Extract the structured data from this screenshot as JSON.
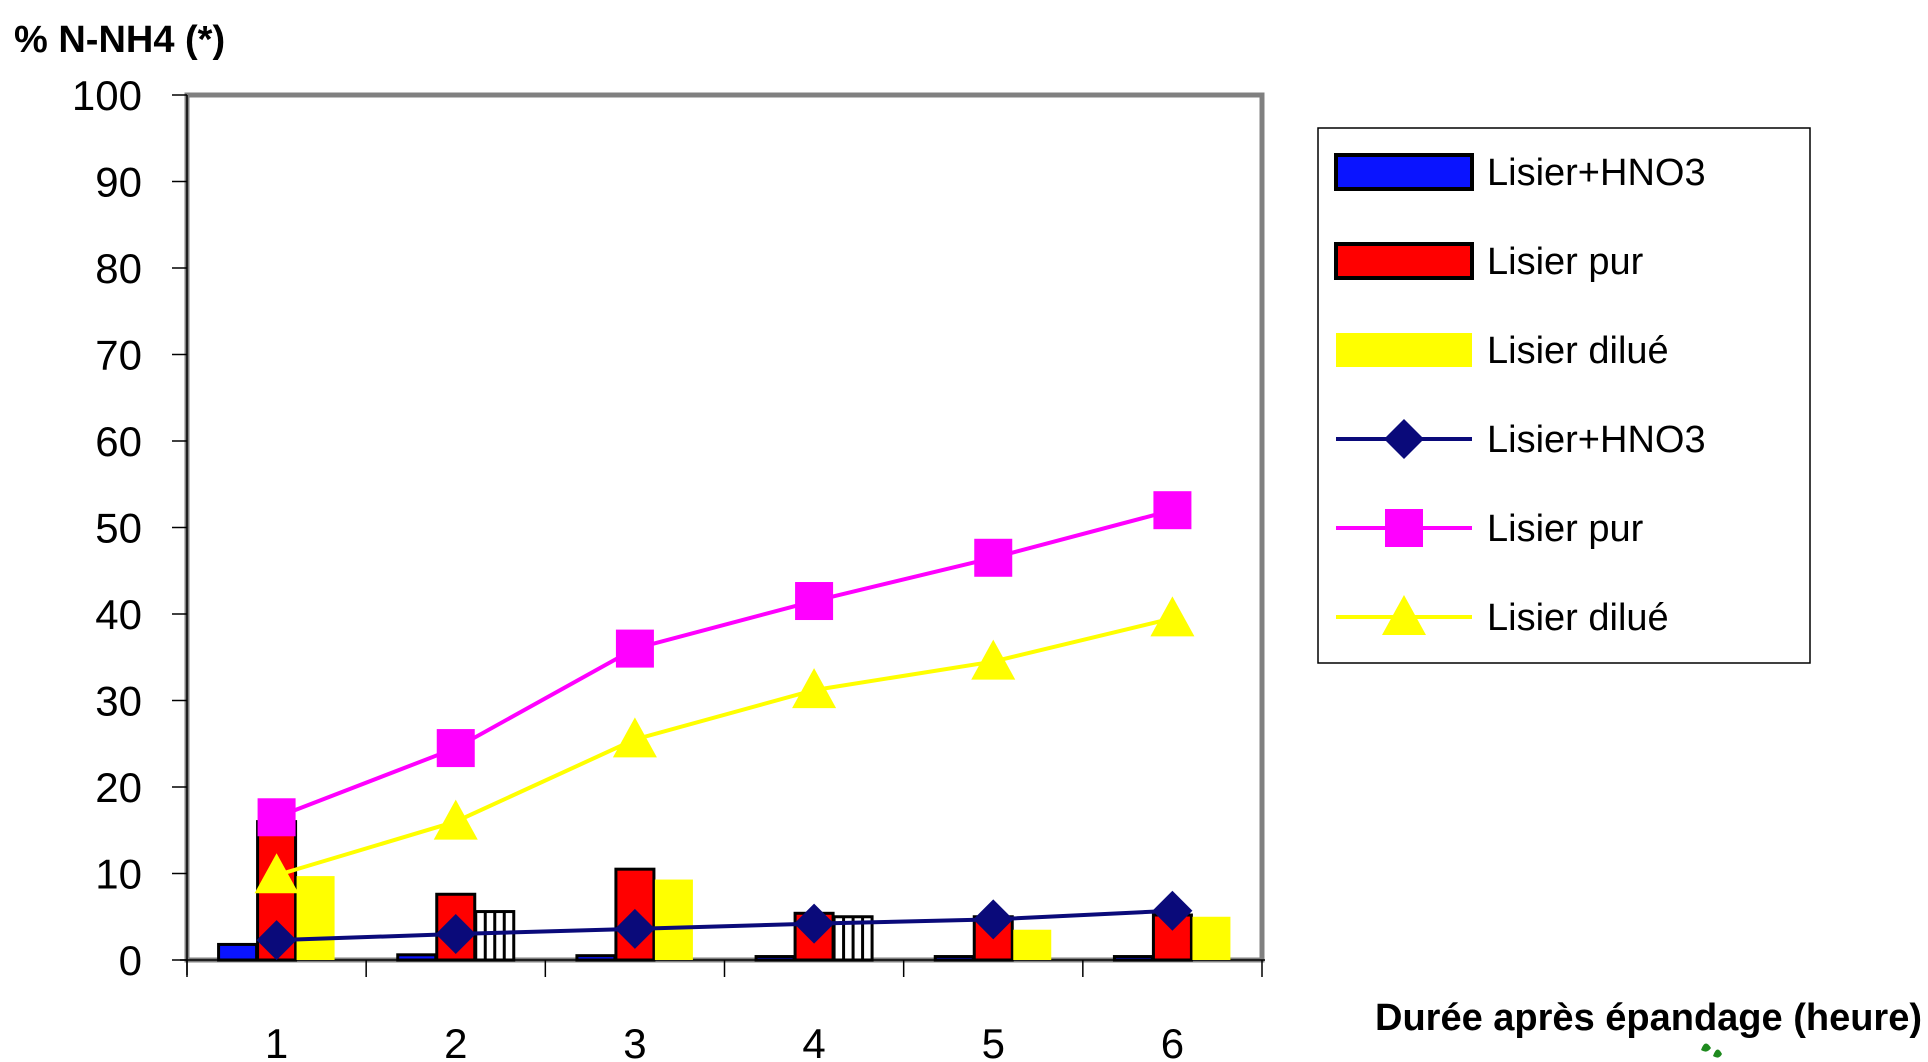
{
  "chart_data": {
    "type": "bar",
    "title": "",
    "ylabel": "% N-NH4 (*)",
    "xlabel": "Durée après épandage (heure)",
    "categories": [
      "1",
      "2",
      "3",
      "4",
      "5",
      "6"
    ],
    "ylim": [
      0,
      100
    ],
    "yticks": [
      "0",
      "10",
      "20",
      "30",
      "40",
      "50",
      "60",
      "70",
      "80",
      "90",
      "100"
    ],
    "grid": false,
    "legend_position": "right",
    "bar_series": [
      {
        "name": "Lisier+HNO3",
        "color": "#0a14ff",
        "values": [
          1.8,
          0.6,
          0.5,
          0.4,
          0.4,
          0.4
        ]
      },
      {
        "name": "Lisier pur",
        "color": "#ff0000",
        "values": [
          16,
          7.6,
          10.5,
          5.4,
          5.0,
          5.2
        ]
      },
      {
        "name": "Lisier dilué",
        "color": "#ffff00",
        "values": [
          9.7,
          5.6,
          9.3,
          5.0,
          3.5,
          5.0
        ]
      }
    ],
    "line_series": [
      {
        "name": "Lisier+HNO3",
        "color": "#0a0a7a",
        "marker": "diamond",
        "values": [
          2.3,
          3.0,
          3.6,
          4.2,
          4.7,
          5.7
        ]
      },
      {
        "name": "Lisier pur",
        "color": "#ff00ff",
        "marker": "square",
        "values": [
          16.5,
          24.5,
          36,
          41.5,
          46.5,
          52
        ]
      },
      {
        "name": "Lisier dilué",
        "color": "#ffff00",
        "marker": "triangle",
        "values": [
          9.8,
          16,
          25.5,
          31.2,
          34.5,
          39.5
        ]
      }
    ]
  }
}
